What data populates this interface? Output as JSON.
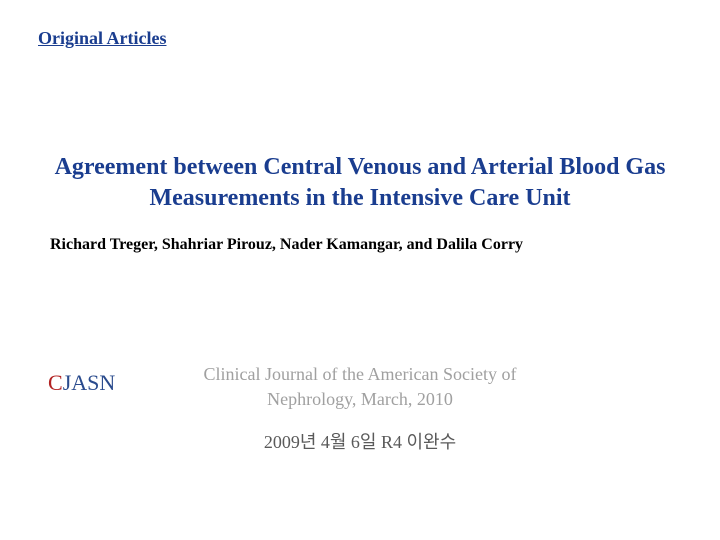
{
  "section_label": "Original Articles",
  "title": "Agreement between Central Venous and Arterial Blood Gas Measurements in the Intensive Care Unit",
  "authors": "Richard Treger, Shahriar Pirouz, Nader Kamangar, and Dalila Corry",
  "logo": {
    "c": "C",
    "jasn": "JASN"
  },
  "journal": "Clinical Journal of the American Society of Nephrology, March, 2010",
  "date_presenter": "2009년 4월 6일 R4 이완수",
  "colors": {
    "primary_blue": "#1a3d8f",
    "logo_red": "#b22222",
    "logo_blue": "#2a4b8d",
    "gray_light": "#a0a0a0",
    "gray_dark": "#5a5a5a",
    "background": "#ffffff"
  },
  "typography": {
    "section_label_size": 18,
    "title_size": 24,
    "authors_size": 16,
    "logo_size": 22,
    "journal_size": 18,
    "date_size": 18
  }
}
